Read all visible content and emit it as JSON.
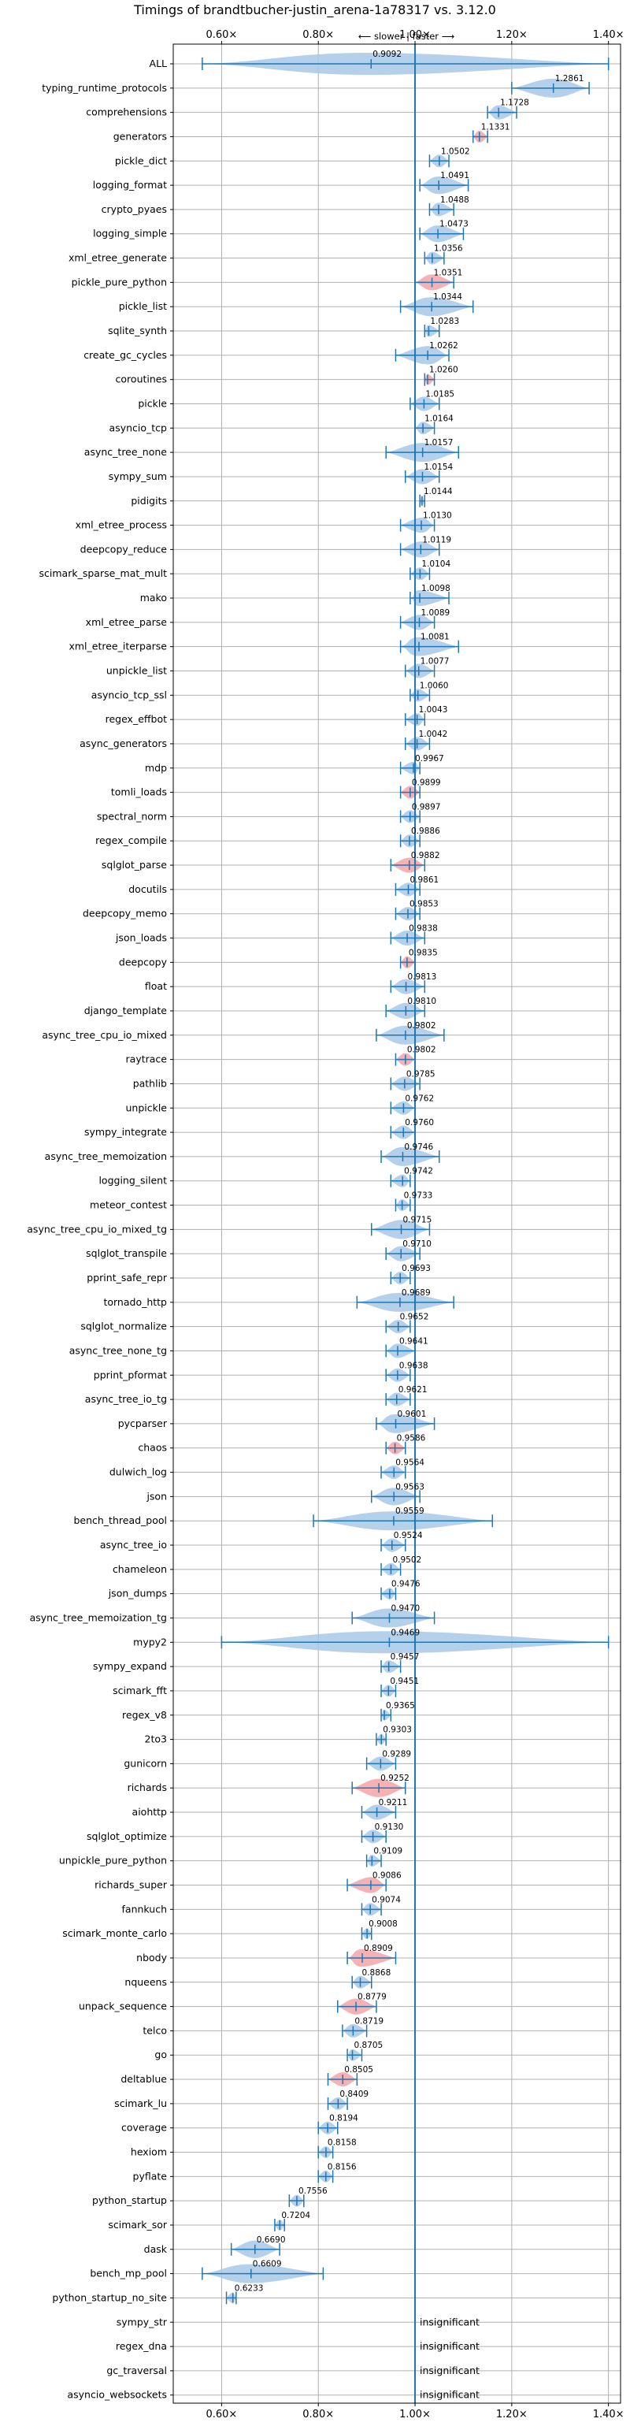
{
  "chart_data": {
    "type": "violin",
    "title": "Timings of brandtbucher-justin_arena-1a78317 vs. 3.12.0",
    "subtitle": "⟵ slower | faster ⟶",
    "xlim": [
      0.5,
      1.425
    ],
    "xticks": [
      0.6,
      0.8,
      1.0,
      1.2,
      1.4
    ],
    "xtick_labels": [
      "0.60×",
      "0.80×",
      "1.00×",
      "1.20×",
      "1.40×"
    ],
    "reference_line": 1.0,
    "grid": true,
    "insignificant_label": "insignificant",
    "benchmarks": [
      {
        "name": "ALL",
        "value": 0.9092,
        "min": 0.56,
        "max": 1.4,
        "wide": true
      },
      {
        "name": "typing_runtime_protocols",
        "value": 1.2861,
        "min": 1.2,
        "max": 1.36
      },
      {
        "name": "comprehensions",
        "value": 1.1728,
        "min": 1.15,
        "max": 1.21
      },
      {
        "name": "generators",
        "value": 1.1331,
        "min": 1.12,
        "max": 1.15,
        "red": true
      },
      {
        "name": "pickle_dict",
        "value": 1.0502,
        "min": 1.03,
        "max": 1.07
      },
      {
        "name": "logging_format",
        "value": 1.0491,
        "min": 1.01,
        "max": 1.11
      },
      {
        "name": "crypto_pyaes",
        "value": 1.0488,
        "min": 1.03,
        "max": 1.08
      },
      {
        "name": "logging_simple",
        "value": 1.0473,
        "min": 1.01,
        "max": 1.1
      },
      {
        "name": "xml_etree_generate",
        "value": 1.0356,
        "min": 1.02,
        "max": 1.06
      },
      {
        "name": "pickle_pure_python",
        "value": 1.0351,
        "min": 1.0,
        "max": 1.08,
        "red": true
      },
      {
        "name": "pickle_list",
        "value": 1.0344,
        "min": 0.97,
        "max": 1.12
      },
      {
        "name": "sqlite_synth",
        "value": 1.0283,
        "min": 1.02,
        "max": 1.05
      },
      {
        "name": "create_gc_cycles",
        "value": 1.0262,
        "min": 0.96,
        "max": 1.07
      },
      {
        "name": "coroutines",
        "value": 1.026,
        "min": 1.02,
        "max": 1.04,
        "red": true
      },
      {
        "name": "pickle",
        "value": 1.0185,
        "min": 0.99,
        "max": 1.05
      },
      {
        "name": "asyncio_tcp",
        "value": 1.0164,
        "min": 1.0,
        "max": 1.04
      },
      {
        "name": "async_tree_none",
        "value": 1.0157,
        "min": 0.94,
        "max": 1.09
      },
      {
        "name": "sympy_sum",
        "value": 1.0154,
        "min": 0.98,
        "max": 1.05
      },
      {
        "name": "pidigits",
        "value": 1.0144,
        "min": 1.01,
        "max": 1.02
      },
      {
        "name": "xml_etree_process",
        "value": 1.013,
        "min": 0.97,
        "max": 1.04
      },
      {
        "name": "deepcopy_reduce",
        "value": 1.0119,
        "min": 0.97,
        "max": 1.05
      },
      {
        "name": "scimark_sparse_mat_mult",
        "value": 1.0104,
        "min": 0.99,
        "max": 1.03
      },
      {
        "name": "mako",
        "value": 1.0098,
        "min": 0.99,
        "max": 1.07
      },
      {
        "name": "xml_etree_parse",
        "value": 1.0089,
        "min": 0.97,
        "max": 1.04
      },
      {
        "name": "xml_etree_iterparse",
        "value": 1.0081,
        "min": 0.97,
        "max": 1.09
      },
      {
        "name": "unpickle_list",
        "value": 1.0077,
        "min": 0.98,
        "max": 1.04
      },
      {
        "name": "asyncio_tcp_ssl",
        "value": 1.006,
        "min": 0.99,
        "max": 1.03
      },
      {
        "name": "regex_effbot",
        "value": 1.0043,
        "min": 0.98,
        "max": 1.02
      },
      {
        "name": "async_generators",
        "value": 1.0042,
        "min": 0.98,
        "max": 1.03
      },
      {
        "name": "mdp",
        "value": 0.9967,
        "min": 0.97,
        "max": 1.01
      },
      {
        "name": "tomli_loads",
        "value": 0.9899,
        "min": 0.97,
        "max": 1.01,
        "red": true
      },
      {
        "name": "spectral_norm",
        "value": 0.9897,
        "min": 0.97,
        "max": 1.01
      },
      {
        "name": "regex_compile",
        "value": 0.9886,
        "min": 0.97,
        "max": 1.01
      },
      {
        "name": "sqlglot_parse",
        "value": 0.9882,
        "min": 0.95,
        "max": 1.02,
        "red": true
      },
      {
        "name": "docutils",
        "value": 0.9861,
        "min": 0.96,
        "max": 1.01
      },
      {
        "name": "deepcopy_memo",
        "value": 0.9853,
        "min": 0.96,
        "max": 1.01
      },
      {
        "name": "json_loads",
        "value": 0.9838,
        "min": 0.95,
        "max": 1.02
      },
      {
        "name": "deepcopy",
        "value": 0.9835,
        "min": 0.97,
        "max": 1.0,
        "red": true
      },
      {
        "name": "float",
        "value": 0.9813,
        "min": 0.95,
        "max": 1.02
      },
      {
        "name": "django_template",
        "value": 0.981,
        "min": 0.94,
        "max": 1.02
      },
      {
        "name": "async_tree_cpu_io_mixed",
        "value": 0.9802,
        "min": 0.92,
        "max": 1.06
      },
      {
        "name": "raytrace",
        "value": 0.9802,
        "min": 0.96,
        "max": 1.0,
        "red": true
      },
      {
        "name": "pathlib",
        "value": 0.9785,
        "min": 0.95,
        "max": 1.01
      },
      {
        "name": "unpickle",
        "value": 0.9762,
        "min": 0.95,
        "max": 1.0
      },
      {
        "name": "sympy_integrate",
        "value": 0.976,
        "min": 0.95,
        "max": 1.0
      },
      {
        "name": "async_tree_memoization",
        "value": 0.9746,
        "min": 0.93,
        "max": 1.05
      },
      {
        "name": "logging_silent",
        "value": 0.9742,
        "min": 0.95,
        "max": 0.99
      },
      {
        "name": "meteor_contest",
        "value": 0.9733,
        "min": 0.96,
        "max": 0.99
      },
      {
        "name": "async_tree_cpu_io_mixed_tg",
        "value": 0.9715,
        "min": 0.91,
        "max": 1.03
      },
      {
        "name": "sqlglot_transpile",
        "value": 0.971,
        "min": 0.94,
        "max": 1.01
      },
      {
        "name": "pprint_safe_repr",
        "value": 0.9693,
        "min": 0.95,
        "max": 0.99
      },
      {
        "name": "tornado_http",
        "value": 0.9689,
        "min": 0.88,
        "max": 1.08
      },
      {
        "name": "sqlglot_normalize",
        "value": 0.9652,
        "min": 0.94,
        "max": 0.99
      },
      {
        "name": "async_tree_none_tg",
        "value": 0.9641,
        "min": 0.94,
        "max": 1.0
      },
      {
        "name": "pprint_pformat",
        "value": 0.9638,
        "min": 0.94,
        "max": 0.99
      },
      {
        "name": "async_tree_io_tg",
        "value": 0.9621,
        "min": 0.94,
        "max": 0.99
      },
      {
        "name": "pycparser",
        "value": 0.9601,
        "min": 0.92,
        "max": 1.04
      },
      {
        "name": "chaos",
        "value": 0.9586,
        "min": 0.94,
        "max": 0.98,
        "red": true
      },
      {
        "name": "dulwich_log",
        "value": 0.9564,
        "min": 0.93,
        "max": 0.98
      },
      {
        "name": "json",
        "value": 0.9563,
        "min": 0.91,
        "max": 1.01
      },
      {
        "name": "bench_thread_pool",
        "value": 0.9559,
        "min": 0.79,
        "max": 1.16
      },
      {
        "name": "async_tree_io",
        "value": 0.9524,
        "min": 0.93,
        "max": 0.98
      },
      {
        "name": "chameleon",
        "value": 0.9502,
        "min": 0.93,
        "max": 0.97
      },
      {
        "name": "json_dumps",
        "value": 0.9476,
        "min": 0.93,
        "max": 0.96
      },
      {
        "name": "async_tree_memoization_tg",
        "value": 0.947,
        "min": 0.87,
        "max": 1.04
      },
      {
        "name": "mypy2",
        "value": 0.9469,
        "min": 0.6,
        "max": 1.4,
        "wide": true
      },
      {
        "name": "sympy_expand",
        "value": 0.9457,
        "min": 0.93,
        "max": 0.97
      },
      {
        "name": "scimark_fft",
        "value": 0.9451,
        "min": 0.93,
        "max": 0.96
      },
      {
        "name": "regex_v8",
        "value": 0.9365,
        "min": 0.93,
        "max": 0.95
      },
      {
        "name": "2to3",
        "value": 0.9303,
        "min": 0.92,
        "max": 0.94
      },
      {
        "name": "gunicorn",
        "value": 0.9289,
        "min": 0.9,
        "max": 0.96
      },
      {
        "name": "richards",
        "value": 0.9252,
        "min": 0.87,
        "max": 0.98,
        "red": true
      },
      {
        "name": "aiohttp",
        "value": 0.9211,
        "min": 0.89,
        "max": 0.96
      },
      {
        "name": "sqlglot_optimize",
        "value": 0.913,
        "min": 0.89,
        "max": 0.94
      },
      {
        "name": "unpickle_pure_python",
        "value": 0.9109,
        "min": 0.9,
        "max": 0.93
      },
      {
        "name": "richards_super",
        "value": 0.9086,
        "min": 0.86,
        "max": 0.94,
        "red": true
      },
      {
        "name": "fannkuch",
        "value": 0.9074,
        "min": 0.89,
        "max": 0.93
      },
      {
        "name": "scimark_monte_carlo",
        "value": 0.9008,
        "min": 0.89,
        "max": 0.91
      },
      {
        "name": "nbody",
        "value": 0.8909,
        "min": 0.86,
        "max": 0.96,
        "red": true
      },
      {
        "name": "nqueens",
        "value": 0.8868,
        "min": 0.87,
        "max": 0.91
      },
      {
        "name": "unpack_sequence",
        "value": 0.8779,
        "min": 0.84,
        "max": 0.92,
        "red": true
      },
      {
        "name": "telco",
        "value": 0.8719,
        "min": 0.85,
        "max": 0.9
      },
      {
        "name": "go",
        "value": 0.8705,
        "min": 0.86,
        "max": 0.89
      },
      {
        "name": "deltablue",
        "value": 0.8505,
        "min": 0.82,
        "max": 0.88,
        "red": true
      },
      {
        "name": "scimark_lu",
        "value": 0.8409,
        "min": 0.82,
        "max": 0.86
      },
      {
        "name": "coverage",
        "value": 0.8194,
        "min": 0.8,
        "max": 0.84
      },
      {
        "name": "hexiom",
        "value": 0.8158,
        "min": 0.8,
        "max": 0.83
      },
      {
        "name": "pyflate",
        "value": 0.8156,
        "min": 0.8,
        "max": 0.83
      },
      {
        "name": "python_startup",
        "value": 0.7556,
        "min": 0.74,
        "max": 0.77
      },
      {
        "name": "scimark_sor",
        "value": 0.7204,
        "min": 0.71,
        "max": 0.73
      },
      {
        "name": "dask",
        "value": 0.669,
        "min": 0.62,
        "max": 0.72
      },
      {
        "name": "bench_mp_pool",
        "value": 0.6609,
        "min": 0.56,
        "max": 0.81
      },
      {
        "name": "python_startup_no_site",
        "value": 0.6233,
        "min": 0.61,
        "max": 0.63
      },
      {
        "name": "sympy_str",
        "insignificant": true
      },
      {
        "name": "regex_dna",
        "insignificant": true
      },
      {
        "name": "gc_traversal",
        "insignificant": true
      },
      {
        "name": "asyncio_websockets",
        "insignificant": true
      }
    ]
  }
}
